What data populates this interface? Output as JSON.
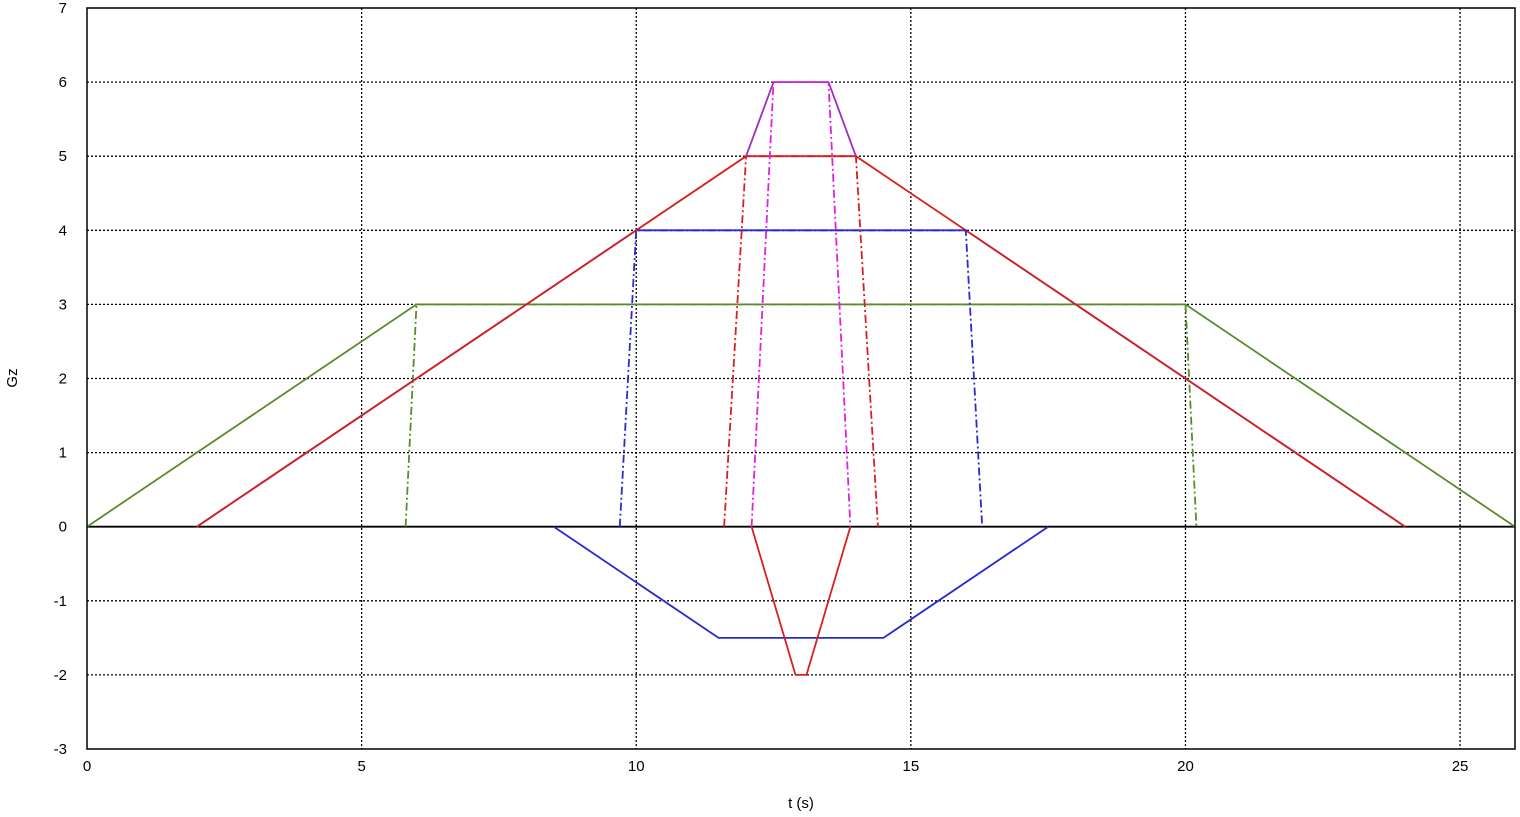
{
  "chart_data": {
    "type": "line",
    "title": "",
    "xlabel": "t (s)",
    "ylabel": "Gz",
    "xlim": [
      0,
      26
    ],
    "ylim": [
      -3,
      7
    ],
    "xticks": [
      0,
      5,
      10,
      15,
      20,
      25
    ],
    "yticks": [
      -3,
      -2,
      -1,
      0,
      1,
      2,
      3,
      4,
      5,
      6,
      7
    ],
    "grid": true,
    "legend": "none",
    "series": [
      {
        "color": "#5b8a2e",
        "style": "solid",
        "x": [
          0,
          6,
          20,
          26
        ],
        "y": [
          0,
          3,
          3,
          0
        ]
      },
      {
        "color": "#5b8a2e",
        "style": "dashdot",
        "x": [
          5.8,
          6,
          20,
          20.2
        ],
        "y": [
          0,
          3,
          3,
          0
        ]
      },
      {
        "color": "#2a2ad0",
        "style": "solid",
        "x": [
          2,
          10,
          16,
          24
        ],
        "y": [
          0,
          4,
          4,
          0
        ]
      },
      {
        "color": "#d8201c",
        "style": "solid",
        "x": [
          2,
          12,
          14,
          24
        ],
        "y": [
          0,
          5,
          5,
          0
        ]
      },
      {
        "color": "#2a2ad0",
        "style": "dashdot",
        "x": [
          9.7,
          10,
          16,
          16.3
        ],
        "y": [
          0,
          4,
          4,
          0
        ]
      },
      {
        "color": "#d8201c",
        "style": "dashdot",
        "x": [
          11.6,
          12,
          14,
          14.4
        ],
        "y": [
          0,
          5,
          5,
          0
        ]
      },
      {
        "color": "#9a2fc0",
        "style": "solid",
        "x": [
          12,
          12.5,
          13.5,
          14
        ],
        "y": [
          5,
          6,
          6,
          5
        ]
      },
      {
        "color": "#e020e0",
        "style": "dashdot",
        "x": [
          12.1,
          12.5,
          13.5,
          13.9
        ],
        "y": [
          0,
          6,
          6,
          0
        ]
      },
      {
        "color": "#2a2ad0",
        "style": "solid",
        "x": [
          8.5,
          11.5,
          14.5,
          17.5
        ],
        "y": [
          0,
          -1.5,
          -1.5,
          0
        ]
      },
      {
        "color": "#d8201c",
        "style": "solid",
        "x": [
          12.1,
          12.9,
          13.1,
          13.9
        ],
        "y": [
          0,
          -2,
          -2,
          0
        ]
      }
    ]
  }
}
